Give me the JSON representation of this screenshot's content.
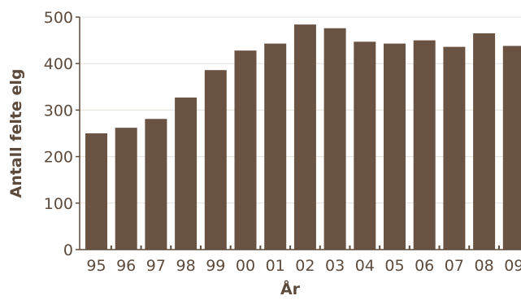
{
  "chart_data": {
    "type": "bar",
    "categories": [
      "95",
      "96",
      "97",
      "98",
      "99",
      "00",
      "01",
      "02",
      "03",
      "04",
      "05",
      "06",
      "07",
      "08",
      "09"
    ],
    "values": [
      250,
      262,
      281,
      327,
      386,
      428,
      443,
      484,
      476,
      447,
      443,
      450,
      436,
      465,
      438
    ],
    "xlabel": "År",
    "ylabel": "Antall felte elg",
    "ylim": [
      0,
      500
    ],
    "yticks": [
      0,
      100,
      200,
      300,
      400,
      500
    ],
    "grid": true,
    "colors": {
      "bar": "#6b5343",
      "axis": "#5c4a3c",
      "grid": "#e6e2de"
    }
  }
}
